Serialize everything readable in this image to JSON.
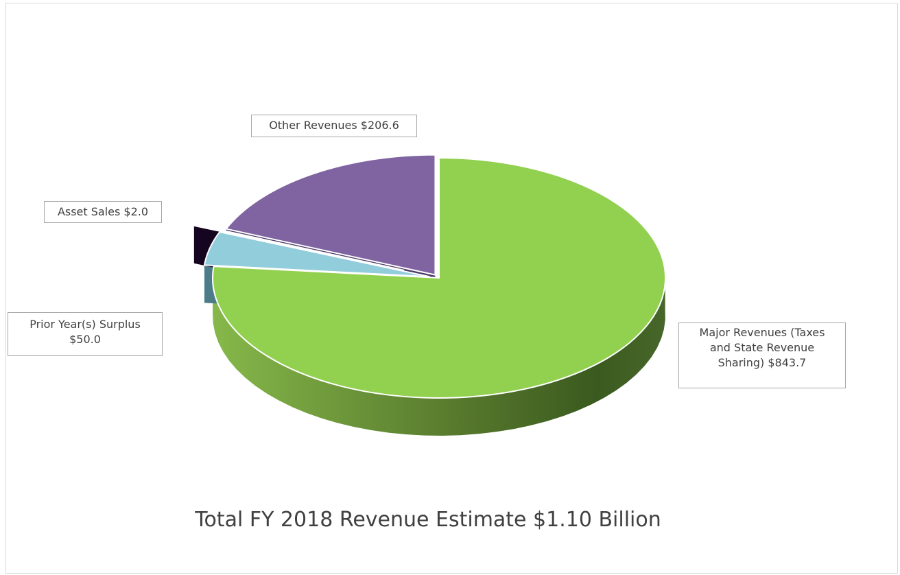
{
  "chart_data": {
    "type": "pie",
    "title": "Total FY 2018 Revenue Estimate $1.10 Billion",
    "units": "millions of dollars",
    "three_d": true,
    "legend": "none",
    "slices": [
      {
        "name": "Major Revenues (Taxes and State Revenue Sharing)",
        "value": 843.7,
        "color": "#92d050",
        "label_lines": [
          "Major Revenues (Taxes",
          "and State Revenue",
          "Sharing)  $843.7"
        ]
      },
      {
        "name": "Prior Year(s) Surplus",
        "value": 50.0,
        "color": "#92cddc",
        "label_lines": [
          "Prior Year(s) Surplus",
          "$50.0"
        ]
      },
      {
        "name": "Asset Sales",
        "value": 2.0,
        "color": "#2b0f3c",
        "label_lines": [
          "Asset Sales $2.0"
        ]
      },
      {
        "name": "Other Revenues",
        "value": 206.6,
        "color": "#8064a2",
        "label_lines": [
          "Other Revenues $206.6"
        ]
      }
    ]
  }
}
